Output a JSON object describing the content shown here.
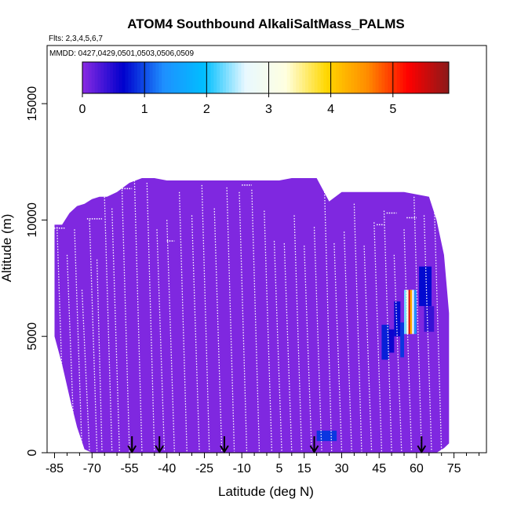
{
  "chart_data": {
    "type": "heatmap",
    "title": "ATOM4 Southbound AlkaliSaltMass_PALMS",
    "flights_note": "Flts: 2,3,4,5,6,7",
    "mmdd_note": "MMDD: 0427,0429,0501,0503,0506,0509",
    "xlabel": "Latitude (deg N)",
    "ylabel": "Altitude (m)",
    "xlim": [
      -88,
      88
    ],
    "ylim": [
      0,
      17500
    ],
    "x_ticks": [
      -85,
      -70,
      -55,
      -40,
      -25,
      -10,
      5,
      15,
      30,
      45,
      60,
      75
    ],
    "x_tick_labels": [
      "-85",
      "-70",
      "-55",
      "-40",
      "-25",
      "-10",
      "5",
      "15",
      "30",
      "45",
      "60",
      "75"
    ],
    "x_minor_ticks": [
      -80,
      -75,
      -65,
      -60,
      -50,
      -45,
      -35,
      -30,
      -20,
      -15,
      -5,
      0,
      10,
      20,
      25,
      35,
      40,
      50,
      55,
      65,
      70,
      80,
      85
    ],
    "y_ticks": [
      0,
      5000,
      10000,
      15000
    ],
    "y_tick_labels": [
      "0",
      "5000",
      "10000",
      "15000"
    ],
    "colorbar": {
      "min": 0,
      "max": 5.9,
      "ticks": [
        0,
        1,
        2,
        3,
        4,
        5
      ],
      "tick_labels": [
        "0",
        "1",
        "2",
        "3",
        "4",
        "5"
      ],
      "colors": [
        "#8a2be2",
        "#0000cd",
        "#1e90ff",
        "#00bfff",
        "#e8f8ff",
        "#ffffe0",
        "#ffd700",
        "#ff8c00",
        "#ff0000",
        "#8b1a1a"
      ]
    },
    "envelope": {
      "lat": [
        -85,
        -82,
        -79,
        -76,
        -73,
        -70,
        -67,
        -64,
        -60,
        -55,
        -50,
        -45,
        -40,
        -35,
        -30,
        -25,
        -20,
        -15,
        -10,
        -5,
        0,
        5,
        10,
        15,
        20,
        25,
        30,
        35,
        40,
        45,
        50,
        55,
        60,
        65,
        68,
        71,
        73
      ],
      "top": [
        9800,
        9800,
        10300,
        10600,
        10700,
        10900,
        11000,
        11000,
        11200,
        11600,
        11800,
        11800,
        11700,
        11700,
        11700,
        11700,
        11700,
        11700,
        11700,
        11700,
        11700,
        11700,
        11800,
        11800,
        11800,
        10800,
        11200,
        11200,
        11200,
        11200,
        11200,
        11200,
        11100,
        11000,
        10000,
        8500,
        6000
      ],
      "bottom": [
        5000,
        3800,
        2400,
        1100,
        150,
        0,
        0,
        0,
        0,
        0,
        0,
        0,
        0,
        0,
        0,
        0,
        0,
        0,
        0,
        0,
        0,
        0,
        0,
        0,
        0,
        0,
        0,
        0,
        0,
        0,
        0,
        0,
        0,
        0,
        0,
        200,
        400
      ]
    },
    "cells": [
      {
        "lat0": 20,
        "lat1": 28,
        "alt0": 500,
        "alt1": 950,
        "value": 0.9
      },
      {
        "lat0": 46,
        "lat1": 49,
        "alt0": 4000,
        "alt1": 5500,
        "value": 0.8
      },
      {
        "lat0": 49,
        "lat1": 51,
        "alt0": 4300,
        "alt1": 5300,
        "value": 0.6
      },
      {
        "lat0": 51,
        "lat1": 53.5,
        "alt0": 5000,
        "alt1": 6500,
        "value": 0.7
      },
      {
        "lat0": 53.5,
        "lat1": 55,
        "alt0": 4100,
        "alt1": 5600,
        "value": 0.9
      },
      {
        "lat0": 55,
        "lat1": 56,
        "alt0": 5100,
        "alt1": 7000,
        "value": 2.3
      },
      {
        "lat0": 56,
        "lat1": 56.8,
        "alt0": 5100,
        "alt1": 7000,
        "value": 3.3
      },
      {
        "lat0": 56.8,
        "lat1": 57.4,
        "alt0": 5100,
        "alt1": 7000,
        "value": 5.4
      },
      {
        "lat0": 57.4,
        "lat1": 58.2,
        "alt0": 5100,
        "alt1": 7000,
        "value": 4.3
      },
      {
        "lat0": 58.2,
        "lat1": 59,
        "alt0": 5100,
        "alt1": 7000,
        "value": 2.7
      },
      {
        "lat0": 59,
        "lat1": 60,
        "alt0": 5100,
        "alt1": 7000,
        "value": 1.3
      },
      {
        "lat0": 61,
        "lat1": 66,
        "alt0": 6300,
        "alt1": 8000,
        "value": 0.7
      },
      {
        "lat0": 63,
        "lat1": 67,
        "alt0": 5200,
        "alt1": 6300,
        "value": 0.4
      }
    ],
    "profiles": [
      {
        "lat_start": -84,
        "lat_end": -81,
        "alt_top": 9700
      },
      {
        "lat_start": -80,
        "lat_end": -77,
        "alt_top": 8500
      },
      {
        "lat_start": -77,
        "lat_end": -74,
        "alt_top": 9600
      },
      {
        "lat_start": -74,
        "lat_end": -71,
        "alt_top": 7000
      },
      {
        "lat_start": -71,
        "lat_end": -68,
        "alt_top": 10000
      },
      {
        "lat_start": -68,
        "lat_end": -66,
        "alt_top": 8300
      },
      {
        "lat_start": -65,
        "lat_end": -62,
        "alt_top": 11000
      },
      {
        "lat_start": -62,
        "lat_end": -59,
        "alt_top": 10500
      },
      {
        "lat_start": -58,
        "lat_end": -55,
        "alt_top": 11300
      },
      {
        "lat_start": -53,
        "lat_end": -50,
        "alt_top": 11700
      },
      {
        "lat_start": -48,
        "lat_end": -45,
        "alt_top": 11600
      },
      {
        "lat_start": -44,
        "lat_end": -41,
        "alt_top": 9600
      },
      {
        "lat_start": -40,
        "lat_end": -37,
        "alt_top": 10000
      },
      {
        "lat_start": -35,
        "lat_end": -32,
        "alt_top": 11200
      },
      {
        "lat_start": -30,
        "lat_end": -27,
        "alt_top": 10200
      },
      {
        "lat_start": -26,
        "lat_end": -23,
        "alt_top": 11500
      },
      {
        "lat_start": -21,
        "lat_end": -18,
        "alt_top": 10500
      },
      {
        "lat_start": -16,
        "lat_end": -13,
        "alt_top": 11400
      },
      {
        "lat_start": -11,
        "lat_end": -8,
        "alt_top": 11200
      },
      {
        "lat_start": -6,
        "lat_end": -3,
        "alt_top": 11300
      },
      {
        "lat_start": -1,
        "lat_end": 2,
        "alt_top": 10400
      },
      {
        "lat_start": 3,
        "lat_end": 6,
        "alt_top": 9100
      },
      {
        "lat_start": 7,
        "lat_end": 10,
        "alt_top": 9000
      },
      {
        "lat_start": 11,
        "lat_end": 14,
        "alt_top": 10200
      },
      {
        "lat_start": 15,
        "lat_end": 18,
        "alt_top": 8900
      },
      {
        "lat_start": 19,
        "lat_end": 22,
        "alt_top": 9700
      },
      {
        "lat_start": 23,
        "lat_end": 26,
        "alt_top": 11800
      },
      {
        "lat_start": 27,
        "lat_end": 30,
        "alt_top": 9000
      },
      {
        "lat_start": 31,
        "lat_end": 34,
        "alt_top": 9500
      },
      {
        "lat_start": 35,
        "lat_end": 38,
        "alt_top": 10700
      },
      {
        "lat_start": 39,
        "lat_end": 42,
        "alt_top": 8900
      },
      {
        "lat_start": 43,
        "lat_end": 46,
        "alt_top": 9900
      },
      {
        "lat_start": 47,
        "lat_end": 50,
        "alt_top": 10400
      },
      {
        "lat_start": 51,
        "lat_end": 54,
        "alt_top": 8500
      },
      {
        "lat_start": 55,
        "lat_end": 58,
        "alt_top": 9600
      },
      {
        "lat_start": 59,
        "lat_end": 62,
        "alt_top": 11000
      },
      {
        "lat_start": 63,
        "lat_end": 66,
        "alt_top": 10200
      },
      {
        "lat_start": 67,
        "lat_end": 70,
        "alt_top": 11000
      }
    ],
    "level_runs": [
      {
        "lat0": -88,
        "lat1": -81,
        "alt": 9650
      },
      {
        "lat0": -72,
        "lat1": -66,
        "alt": 10050
      },
      {
        "lat0": -58,
        "lat1": -54,
        "alt": 11350
      },
      {
        "lat0": -10,
        "lat1": -6,
        "alt": 11500
      },
      {
        "lat0": 20,
        "lat1": 24,
        "alt": 11900
      },
      {
        "lat0": 48,
        "lat1": 52,
        "alt": 10300
      },
      {
        "lat0": 56,
        "lat1": 60,
        "alt": 10100
      },
      {
        "lat0": -40,
        "lat1": -37,
        "alt": 9100
      },
      {
        "lat0": 44,
        "lat1": 47,
        "alt": 9800
      }
    ],
    "arrows_lat": [
      -54,
      -43,
      -17,
      19,
      62
    ]
  }
}
